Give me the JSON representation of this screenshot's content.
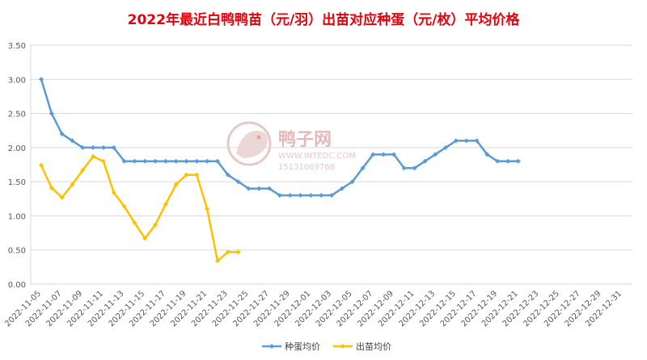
{
  "title": "2022年最近白鸭鸭苗（元/羽）出苗对应种蛋（元/枚）平均价格",
  "watermark": {
    "name": "鸭子网",
    "url": "WWW.INTEDC.COM",
    "phone": "15131069768"
  },
  "colors": {
    "series1": "#5b9bd5",
    "series2": "#ffc000",
    "title": "#e8000b",
    "grid": "#d9d9d9"
  },
  "chart_data": {
    "type": "line",
    "title": "2022年最近白鸭鸭苗（元/羽）出苗对应种蛋（元/枚）平均价格",
    "ylim": [
      0,
      3.5
    ],
    "yticks": [
      "0.00",
      "0.50",
      "1.00",
      "1.50",
      "2.00",
      "2.50",
      "3.00",
      "3.50"
    ],
    "xtick_labels": [
      "2022-11-05",
      "2022-11-07",
      "2022-11-09",
      "2022-11-11",
      "2022-11-13",
      "2022-11-15",
      "2022-11-17",
      "2022-11-19",
      "2022-11-21",
      "2022-11-23",
      "2022-11-25",
      "2022-11-27",
      "2022-11-29",
      "2022-12-01",
      "2022-12-03",
      "2022-12-05",
      "2022-12-07",
      "2022-12-09",
      "2022-12-11",
      "2022-12-13",
      "2022-12-15",
      "2022-12-17",
      "2022-12-19",
      "2022-12-21",
      "2022-12-23",
      "2022-12-25",
      "2022-12-27",
      "2022-12-29",
      "2022-12-31"
    ],
    "grid": true,
    "legend_position": "bottom",
    "series": [
      {
        "name": "种蛋均价",
        "color": "#5b9bd5",
        "x": [
          "2022-11-05",
          "2022-11-06",
          "2022-11-07",
          "2022-11-08",
          "2022-11-09",
          "2022-11-10",
          "2022-11-11",
          "2022-11-12",
          "2022-11-13",
          "2022-11-14",
          "2022-11-15",
          "2022-11-16",
          "2022-11-17",
          "2022-11-18",
          "2022-11-19",
          "2022-11-20",
          "2022-11-21",
          "2022-11-22",
          "2022-11-23",
          "2022-11-24",
          "2022-11-25",
          "2022-11-26",
          "2022-11-27",
          "2022-11-28",
          "2022-11-29",
          "2022-11-30",
          "2022-12-01",
          "2022-12-02",
          "2022-12-03",
          "2022-12-04",
          "2022-12-05",
          "2022-12-06",
          "2022-12-07",
          "2022-12-08",
          "2022-12-09",
          "2022-12-10",
          "2022-12-11",
          "2022-12-12",
          "2022-12-13",
          "2022-12-14",
          "2022-12-15",
          "2022-12-16",
          "2022-12-17",
          "2022-12-18",
          "2022-12-19",
          "2022-12-20",
          "2022-12-21"
        ],
        "values": [
          3.0,
          2.5,
          2.2,
          2.1,
          2.0,
          2.0,
          2.0,
          2.0,
          1.8,
          1.8,
          1.8,
          1.8,
          1.8,
          1.8,
          1.8,
          1.8,
          1.8,
          1.8,
          1.6,
          1.5,
          1.4,
          1.4,
          1.4,
          1.3,
          1.3,
          1.3,
          1.3,
          1.3,
          1.3,
          1.4,
          1.5,
          1.7,
          1.9,
          1.9,
          1.9,
          1.7,
          1.7,
          1.8,
          1.9,
          2.0,
          2.1,
          2.1,
          2.1,
          1.9,
          1.8,
          1.8,
          1.8
        ]
      },
      {
        "name": "出苗均价",
        "color": "#ffc000",
        "x": [
          "2022-11-05",
          "2022-11-06",
          "2022-11-07",
          "2022-11-08",
          "2022-11-09",
          "2022-11-10",
          "2022-11-11",
          "2022-11-12",
          "2022-11-13",
          "2022-11-14",
          "2022-11-15",
          "2022-11-16",
          "2022-11-17",
          "2022-11-18",
          "2022-11-19",
          "2022-11-20",
          "2022-11-21",
          "2022-11-22",
          "2022-11-23",
          "2022-11-24"
        ],
        "values": [
          1.74,
          1.41,
          1.27,
          1.46,
          1.67,
          1.87,
          1.8,
          1.34,
          1.14,
          0.9,
          0.67,
          0.87,
          1.17,
          1.46,
          1.6,
          1.6,
          1.1,
          0.34,
          0.47,
          0.47
        ]
      }
    ]
  }
}
